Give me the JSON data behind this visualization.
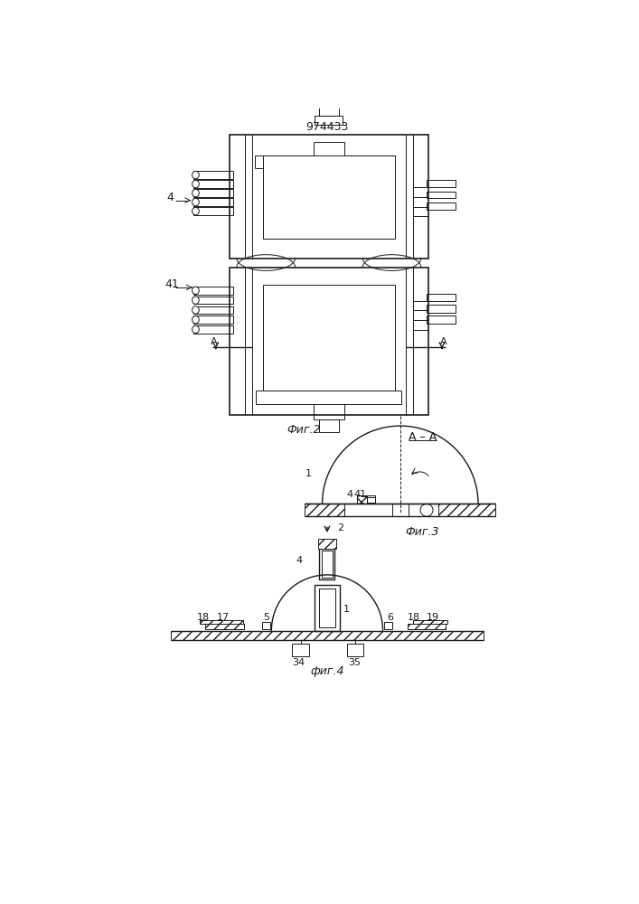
{
  "title": "974433",
  "bg_color": "#ffffff",
  "line_color": "#1a1a1a",
  "fig_size": [
    7.07,
    10.0
  ],
  "dpi": 100,
  "fig1_label": "4",
  "fig2_label": "41",
  "fig2_caption": "Фиг.2",
  "fig3_caption": "Фиг.3",
  "fig3_label": "A–A",
  "fig4_caption": "фиг.4",
  "label_A": "A",
  "label_2": "2",
  "label_4": "4",
  "label_1": "1",
  "label_5": "5",
  "label_6": "6",
  "label_17": "17",
  "label_18": "18",
  "label_19": "19",
  "label_34": "34",
  "label_35": "35",
  "label_41": "41"
}
